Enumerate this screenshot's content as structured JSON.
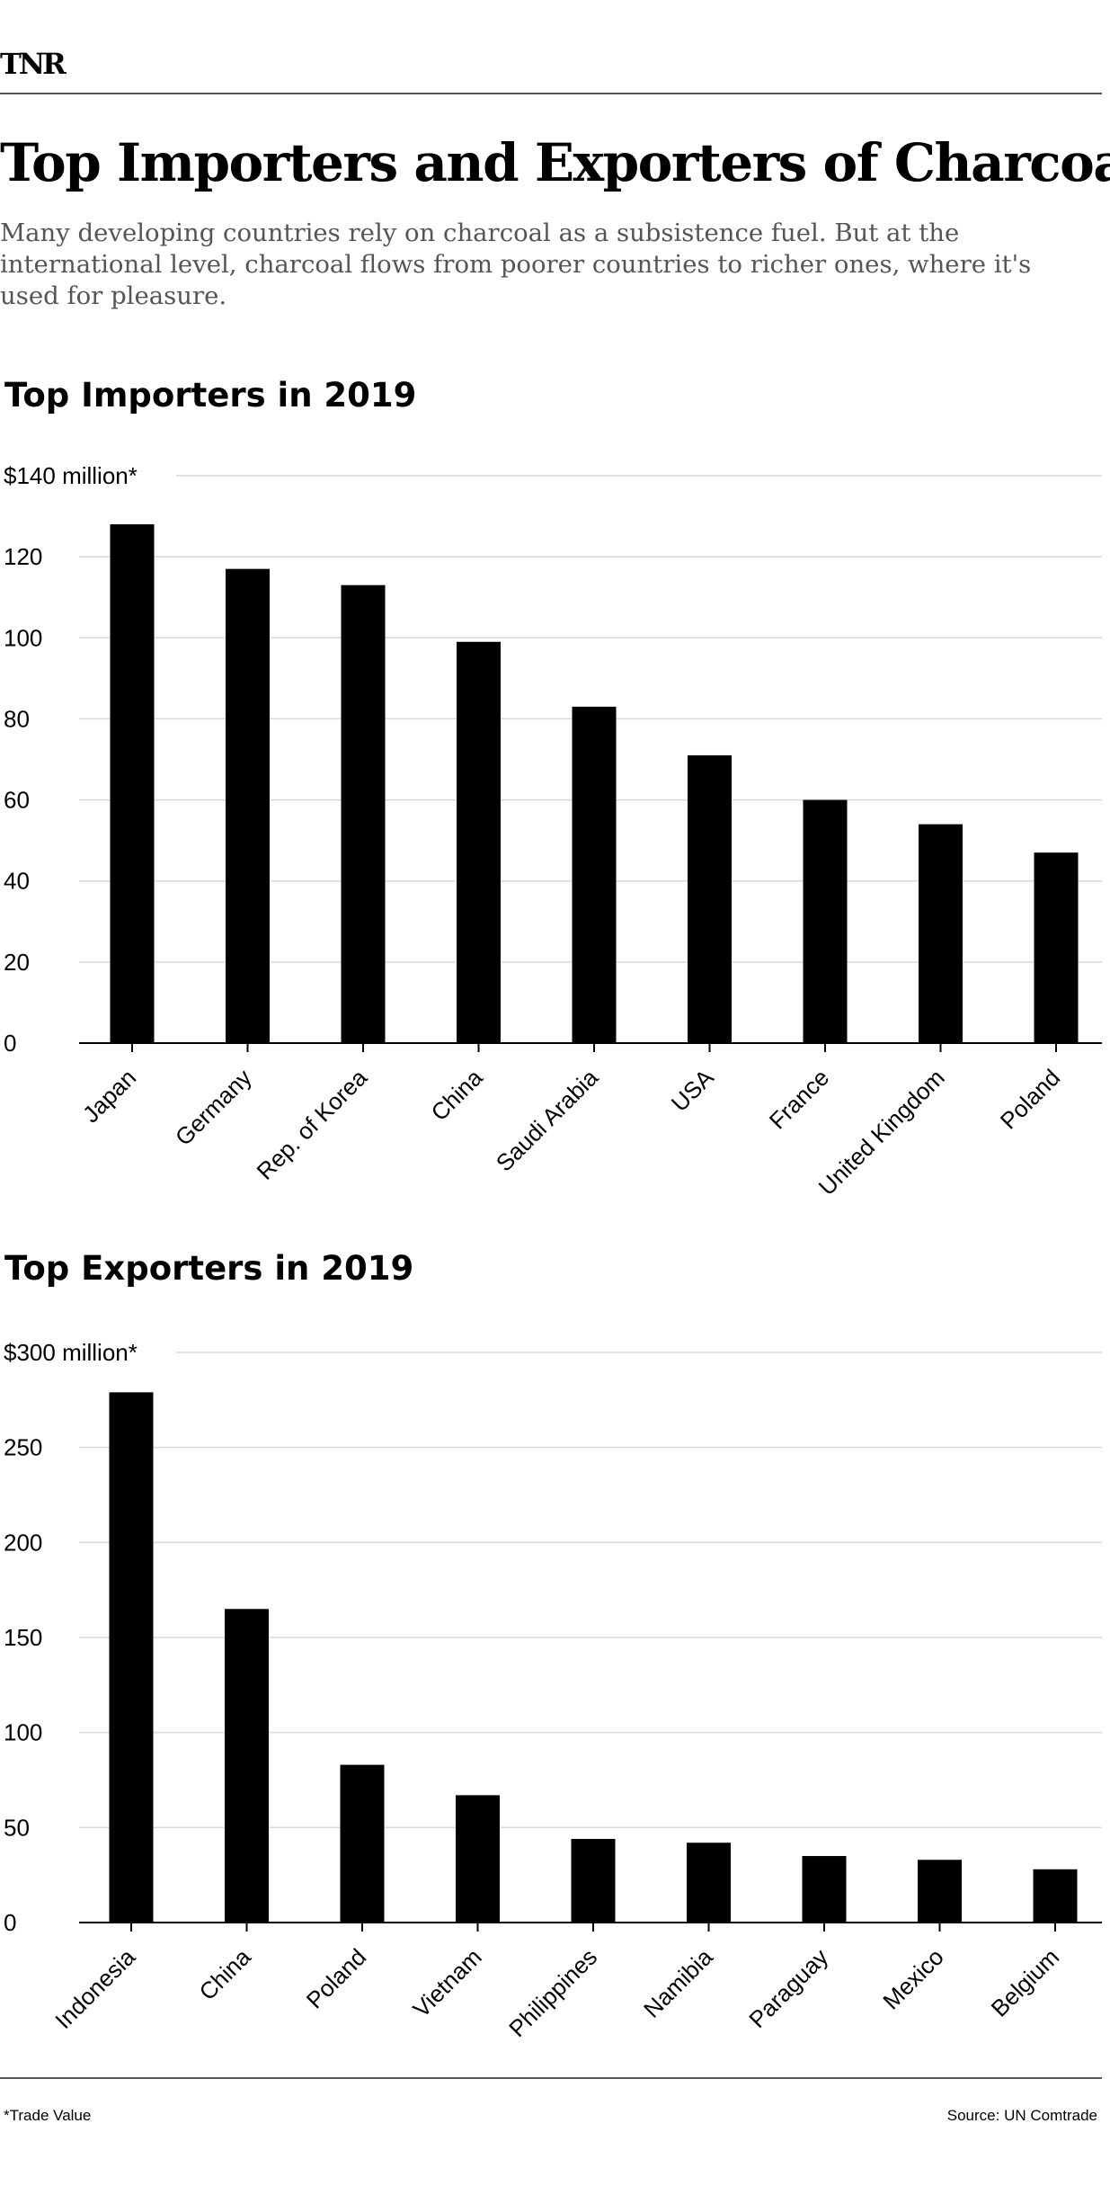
{
  "brand": {
    "logo_text": "TNR"
  },
  "header": {
    "title": "Top Importers and Exporters of Charcoal",
    "dek": "Many developing countries rely on charcoal as a subsistence fuel. But at the international level, charcoal flows from poorer countries to richer ones, where it's used for pleasure."
  },
  "colors": {
    "bar": "#000000",
    "grid": "#d9d9d9",
    "axis": "#000000",
    "text": "#000000",
    "dek": "#555555",
    "rule": "#555555"
  },
  "chart_data": [
    {
      "type": "bar",
      "title": "Top Importers in 2019",
      "top_tick_label": "$140 million*",
      "yticks": [
        0,
        20,
        40,
        60,
        80,
        100,
        120,
        140
      ],
      "ylim": [
        0,
        140
      ],
      "grid": true,
      "categories": [
        "Japan",
        "Germany",
        "Rep. of Korea",
        "China",
        "Saudi Arabia",
        "USA",
        "France",
        "United Kingdom",
        "Poland"
      ],
      "values": [
        128,
        117,
        113,
        99,
        83,
        71,
        60,
        54,
        47
      ]
    },
    {
      "type": "bar",
      "title": "Top Exporters in 2019",
      "top_tick_label": "$300 million*",
      "yticks": [
        0,
        50,
        100,
        150,
        200,
        250,
        300
      ],
      "ylim": [
        0,
        300
      ],
      "grid": true,
      "categories": [
        "Indonesia",
        "China",
        "Poland",
        "Vietnam",
        "Philippines",
        "Namibia",
        "Paraguay",
        "Mexico",
        "Belgium"
      ],
      "values": [
        279,
        165,
        83,
        67,
        44,
        42,
        35,
        33,
        28
      ]
    }
  ],
  "footer": {
    "footnote": "*Trade Value",
    "source": "Source: UN Comtrade"
  }
}
